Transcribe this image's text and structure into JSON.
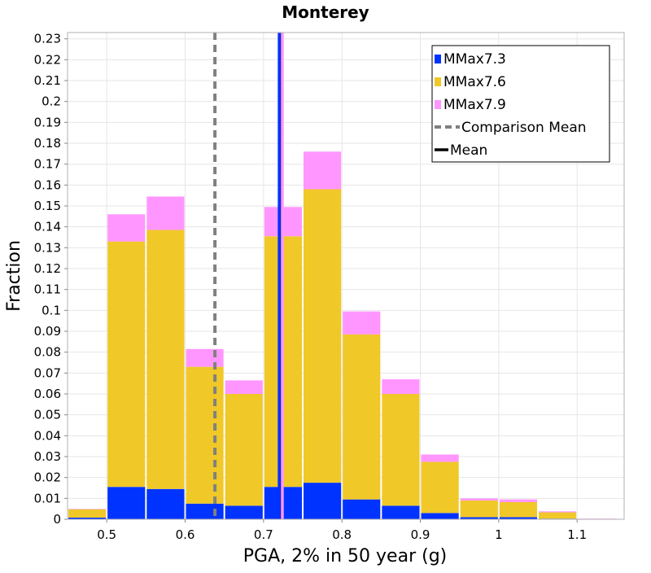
{
  "chart_data": {
    "type": "bar",
    "stacked": true,
    "title": "Monterey",
    "xlabel": "PGA, 2% in 50 year (g)",
    "ylabel": "Fraction",
    "xlim": [
      0.45,
      1.16
    ],
    "ylim": [
      0,
      0.233
    ],
    "bin_width": 0.05,
    "x_ticks": [
      0.5,
      0.6,
      0.7,
      0.8,
      0.9,
      1.0,
      1.1
    ],
    "x_tick_labels": [
      "0.5",
      "0.6",
      "0.7",
      "0.8",
      "0.9",
      "1",
      "1.1"
    ],
    "y_ticks": [
      0,
      0.01,
      0.02,
      0.03,
      0.04,
      0.05,
      0.06,
      0.07,
      0.08,
      0.09,
      0.1,
      0.11,
      0.12,
      0.13,
      0.14,
      0.15,
      0.16,
      0.17,
      0.18,
      0.19,
      0.2,
      0.21,
      0.22,
      0.23
    ],
    "y_tick_labels": [
      "0",
      "0.01",
      "0.02",
      "0.03",
      "0.04",
      "0.05",
      "0.06",
      "0.07",
      "0.08",
      "0.09",
      "0.1",
      "0.11",
      "0.12",
      "0.13",
      "0.14",
      "0.15",
      "0.16",
      "0.17",
      "0.18",
      "0.19",
      "0.2",
      "0.21",
      "0.22",
      "0.23"
    ],
    "x": [
      0.475,
      0.525,
      0.575,
      0.625,
      0.675,
      0.725,
      0.775,
      0.825,
      0.875,
      0.925,
      0.975,
      1.025,
      1.075,
      1.125
    ],
    "series": [
      {
        "name": "MMax7.3",
        "color": "#0033ff",
        "values": [
          0.0008,
          0.0155,
          0.0145,
          0.0075,
          0.0065,
          0.0155,
          0.0175,
          0.0095,
          0.0065,
          0.003,
          0.001,
          0.001,
          0.0003,
          0.0
        ]
      },
      {
        "name": "MMax7.6",
        "color": "#f0c828",
        "values": [
          0.004,
          0.1175,
          0.124,
          0.0655,
          0.0535,
          0.12,
          0.1405,
          0.079,
          0.0535,
          0.0245,
          0.008,
          0.0072,
          0.003,
          0.0002
        ]
      },
      {
        "name": "MMax7.9",
        "color": "#ff96ff",
        "values": [
          0.0002,
          0.013,
          0.016,
          0.0085,
          0.0065,
          0.014,
          0.018,
          0.011,
          0.007,
          0.0035,
          0.001,
          0.0013,
          0.0005,
          0.0001
        ]
      }
    ],
    "reference_lines": [
      {
        "name": "Comparison Mean",
        "x": 0.638,
        "color": "#808080",
        "style": "dashed"
      },
      {
        "name": "Mean",
        "x": 0.722,
        "color": "#000000",
        "style": "solid"
      },
      {
        "series": "MMax7.9",
        "x": 0.724,
        "color": "#ff96ff",
        "style": "solid"
      },
      {
        "series": "MMax7.3",
        "x": 0.72,
        "color": "#0033ff",
        "style": "solid"
      }
    ],
    "legend": {
      "position": "top-right",
      "entries": [
        {
          "label": "MMax7.3",
          "marker": "square",
          "color": "#0033ff"
        },
        {
          "label": "MMax7.6",
          "marker": "square",
          "color": "#f0c828"
        },
        {
          "label": "MMax7.9",
          "marker": "square",
          "color": "#ff96ff"
        },
        {
          "label": "Comparison Mean",
          "marker": "dashed-line",
          "color": "#808080"
        },
        {
          "label": "Mean",
          "marker": "solid-line",
          "color": "#000000"
        }
      ]
    },
    "grid": true
  }
}
